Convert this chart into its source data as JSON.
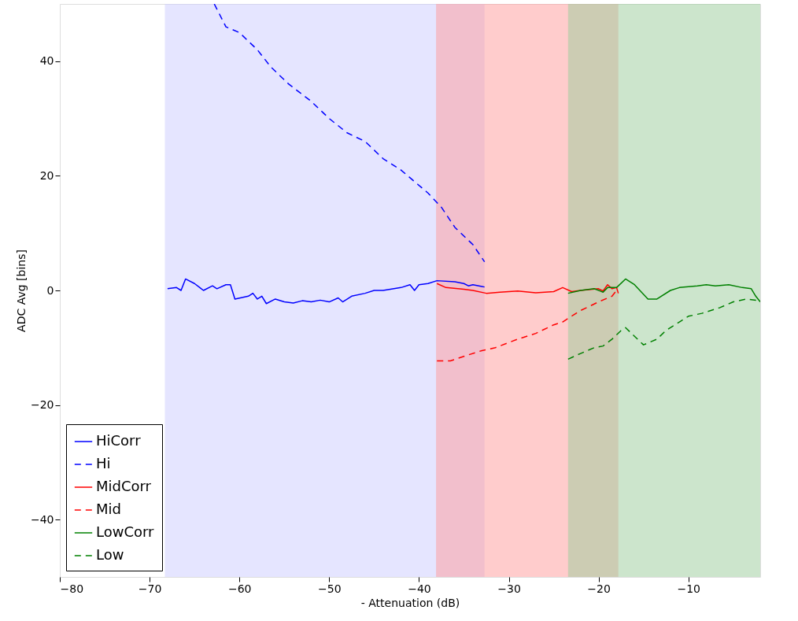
{
  "chart_data": {
    "type": "line",
    "xlabel": "- Attenuation (dB)",
    "ylabel": "ADC Avg [bins]",
    "xlim": [
      -80,
      -2
    ],
    "ylim": [
      -50,
      50
    ],
    "xticks": [
      {
        "value": -80,
        "label": "−80"
      },
      {
        "value": -70,
        "label": "−70"
      },
      {
        "value": -60,
        "label": "−60"
      },
      {
        "value": -50,
        "label": "−50"
      },
      {
        "value": -40,
        "label": "−40"
      },
      {
        "value": -30,
        "label": "−30"
      },
      {
        "value": -20,
        "label": "−20"
      },
      {
        "value": -10,
        "label": "−10"
      }
    ],
    "yticks": [
      {
        "value": -40,
        "label": "−40"
      },
      {
        "value": -20,
        "label": "−20"
      },
      0,
      20,
      40
    ],
    "grid": false,
    "legend": "bottom left",
    "bands": [
      {
        "axis": "x",
        "from": -68.3,
        "to": -32.7,
        "color": "#ccccff"
      },
      {
        "axis": "x",
        "from": -38.1,
        "to": -17.8,
        "color": "#ff9999"
      },
      {
        "axis": "x",
        "from": -23.4,
        "to": -2,
        "color": "#99cc99"
      }
    ],
    "series": [
      {
        "name": "HiCorr",
        "color": "#0000ff",
        "line_style": "solid",
        "x": [
          -68,
          -67,
          -66.5,
          -66,
          -65,
          -64,
          -63,
          -62.5,
          -61.5,
          -61,
          -60.5,
          -59,
          -58.5,
          -58,
          -57.5,
          -57,
          -56,
          -55,
          -54,
          -53,
          -52,
          -51,
          -50,
          -49,
          -48.5,
          -47.5,
          -46,
          -45,
          -44,
          -42,
          -41,
          -40.5,
          -40,
          -39,
          -38,
          -36,
          -35,
          -34.5,
          -34,
          -33,
          -32.7
        ],
        "values": [
          0.3,
          0.5,
          0,
          2,
          1.2,
          0,
          0.8,
          0.3,
          1,
          1,
          -1.5,
          -1,
          -0.5,
          -1.5,
          -1,
          -2.3,
          -1.5,
          -2,
          -2.2,
          -1.8,
          -2,
          -1.7,
          -2,
          -1.3,
          -2,
          -1,
          -0.5,
          0,
          0,
          0.5,
          1,
          0,
          1,
          1.2,
          1.7,
          1.5,
          1.2,
          0.8,
          1,
          0.7,
          0.6
        ]
      },
      {
        "name": "Hi",
        "color": "#0000ff",
        "line_style": "dashed",
        "x": [
          -62.8,
          -61.5,
          -60,
          -58,
          -56.5,
          -54.5,
          -52,
          -50,
          -48,
          -46,
          -44,
          -42,
          -40.5,
          -39,
          -37.5,
          -36,
          -34,
          -32.7
        ],
        "values": [
          50,
          46,
          45,
          42,
          39,
          36,
          33,
          30,
          27.5,
          26,
          23,
          21,
          19,
          17,
          14.5,
          11,
          8,
          5
        ]
      },
      {
        "name": "MidCorr",
        "color": "#ff0000",
        "line_style": "solid",
        "x": [
          -38,
          -37,
          -35,
          -34,
          -32.5,
          -31,
          -29,
          -27,
          -25,
          -24,
          -23,
          -22,
          -20,
          -19.5,
          -19,
          -18.5,
          -18,
          -17.8
        ],
        "values": [
          1.2,
          0.5,
          0.2,
          0,
          -0.5,
          -0.3,
          -0.1,
          -0.4,
          -0.2,
          0.5,
          -0.2,
          0,
          0.3,
          -0.1,
          1,
          0.3,
          0.5,
          -0.5
        ]
      },
      {
        "name": "Mid",
        "color": "#ff0000",
        "line_style": "dashed",
        "x": [
          -38,
          -36.5,
          -35,
          -33,
          -31.5,
          -29,
          -27,
          -25,
          -24,
          -22,
          -20,
          -18.5,
          -18
        ],
        "values": [
          -12.3,
          -12.3,
          -11.5,
          -10.5,
          -10,
          -8.5,
          -7.5,
          -6,
          -5.5,
          -3.5,
          -2,
          -1,
          0
        ]
      },
      {
        "name": "LowCorr",
        "color": "#008000",
        "line_style": "solid",
        "x": [
          -23.4,
          -22,
          -20.5,
          -19.5,
          -19,
          -18,
          -17,
          -16,
          -14.5,
          -13.5,
          -12,
          -11,
          -9,
          -8,
          -7,
          -5.5,
          -4,
          -3,
          -2.5,
          -2
        ],
        "values": [
          -0.5,
          0,
          0.3,
          -0.3,
          0.5,
          0.5,
          2,
          1,
          -1.5,
          -1.5,
          0,
          0.5,
          0.8,
          1,
          0.8,
          1,
          0.5,
          0.3,
          -1,
          -2
        ]
      },
      {
        "name": "Low",
        "color": "#008000",
        "line_style": "dashed",
        "x": [
          -23.4,
          -22,
          -20.5,
          -19.5,
          -18.5,
          -17.5,
          -17,
          -16,
          -15,
          -13.5,
          -12.5,
          -11,
          -10,
          -8.5,
          -6.5,
          -5,
          -3.5,
          -2
        ],
        "values": [
          -12,
          -11,
          -10,
          -9.7,
          -8.5,
          -7,
          -6.5,
          -8,
          -9.5,
          -8.5,
          -7,
          -5.5,
          -4.5,
          -4,
          -3,
          -2,
          -1.5,
          -1.8
        ]
      }
    ]
  }
}
